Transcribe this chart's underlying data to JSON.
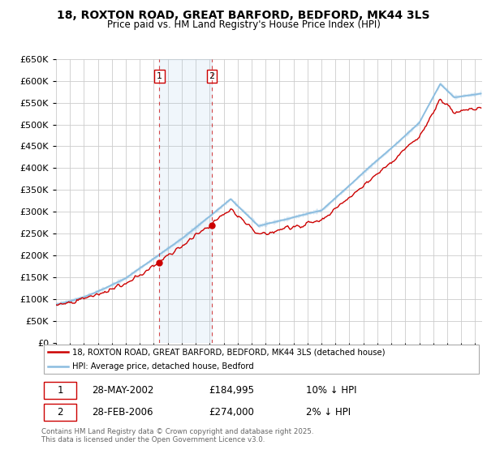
{
  "title": "18, ROXTON ROAD, GREAT BARFORD, BEDFORD, MK44 3LS",
  "subtitle": "Price paid vs. HM Land Registry's House Price Index (HPI)",
  "legend_line1": "18, ROXTON ROAD, GREAT BARFORD, BEDFORD, MK44 3LS (detached house)",
  "legend_line2": "HPI: Average price, detached house, Bedford",
  "transaction1_date": "28-MAY-2002",
  "transaction1_price": "£184,995",
  "transaction1_hpi": "10% ↓ HPI",
  "transaction2_date": "28-FEB-2006",
  "transaction2_price": "£274,000",
  "transaction2_hpi": "2% ↓ HPI",
  "footnote": "Contains HM Land Registry data © Crown copyright and database right 2025.\nThis data is licensed under the Open Government Licence v3.0.",
  "hpi_color": "#8bbde0",
  "price_color": "#cc0000",
  "marker1_x": 2002.4,
  "marker2_x": 2006.15,
  "ylim_min": 0,
  "ylim_max": 650000,
  "ytick_step": 50000,
  "xmin": 1995,
  "xmax": 2025.5,
  "background_color": "#ffffff",
  "grid_color": "#cccccc"
}
